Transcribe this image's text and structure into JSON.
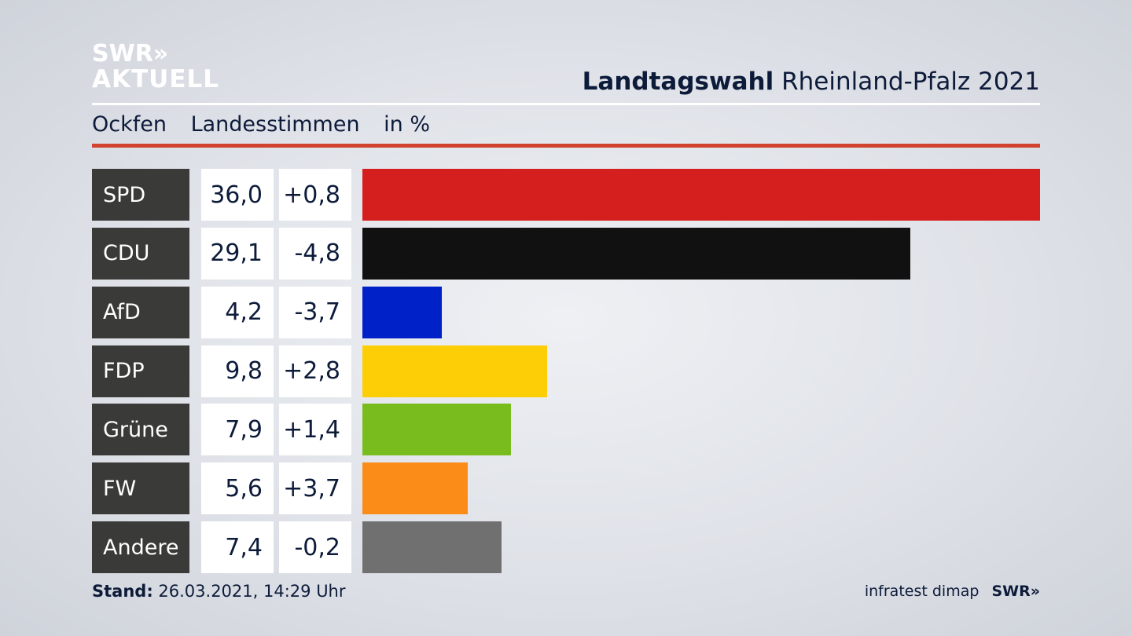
{
  "logo": {
    "line1": "SWR»",
    "line2": "AKTUELL"
  },
  "header": {
    "title_bold": "Landtagswahl",
    "title_rest": "Rheinland-Pfalz 2021",
    "location": "Ockfen",
    "measure": "Landesstimmen",
    "unit": "in %"
  },
  "colors": {
    "accent_rule": "#d1432f",
    "label_bg": "#3a3a39"
  },
  "chart_data": {
    "type": "bar",
    "orientation": "horizontal",
    "categories": [
      "SPD",
      "CDU",
      "AfD",
      "FDP",
      "Grüne",
      "FW",
      "Andere"
    ],
    "values": [
      36.0,
      29.1,
      4.2,
      9.8,
      7.9,
      5.6,
      7.4
    ],
    "value_labels": [
      "36,0",
      "29,1",
      "4,2",
      "9,8",
      "7,9",
      "5,6",
      "7,4"
    ],
    "change_labels": [
      "+0,8",
      "-4,8",
      "-3,7",
      "+2,8",
      "+1,4",
      "+3,7",
      "-0,2"
    ],
    "changes": [
      0.8,
      -4.8,
      -3.7,
      2.8,
      1.4,
      3.7,
      -0.2
    ],
    "colors": [
      "#d51f1f",
      "#111111",
      "#0021c8",
      "#fdcd06",
      "#78bd1d",
      "#fc8c18",
      "#707071"
    ],
    "xlim": [
      0,
      36.0
    ],
    "grid": false
  },
  "footer": {
    "stand_label": "Stand:",
    "stand_value": "26.03.2021, 14:29 Uhr",
    "source": "infratest dimap",
    "brand": "SWR»"
  }
}
